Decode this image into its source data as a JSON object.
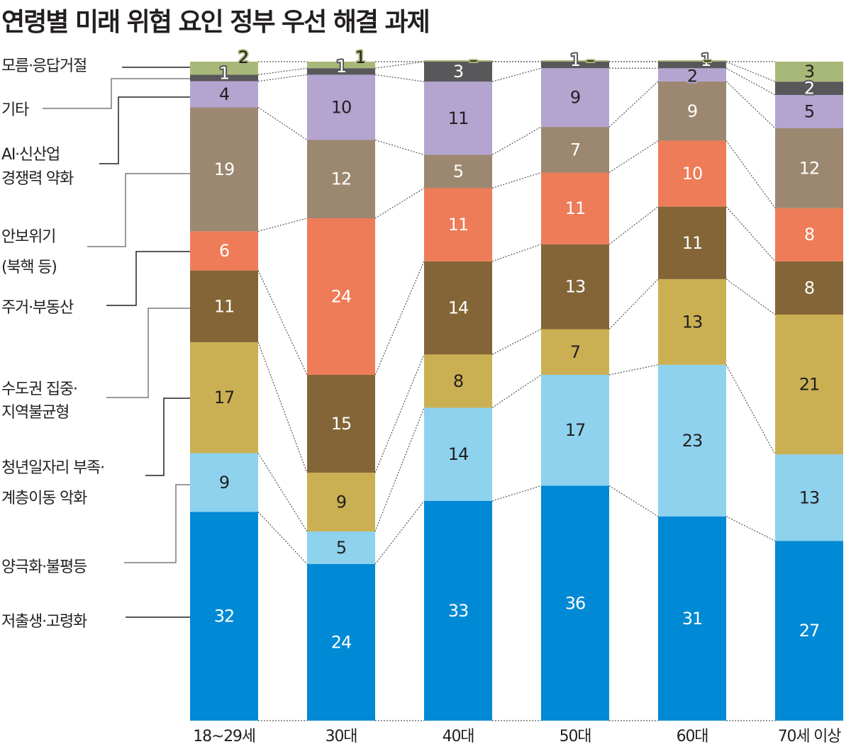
{
  "title": "연령별 미래 위협 요인 정부 우선 해결 과제",
  "chart_data": {
    "type": "bar",
    "stacked": true,
    "normalized": true,
    "title": "연령별 미래 위협 요인 정부 우선 해결 과제",
    "xlabel": "",
    "ylabel": "",
    "categories": [
      "18~29세",
      "30대",
      "40대",
      "50대",
      "60대",
      "70세 이상"
    ],
    "series": [
      {
        "name": "저출생·고령화",
        "color": "#0089d4",
        "text_color": "#ffffff",
        "values": [
          32,
          24,
          33,
          36,
          31,
          27
        ],
        "labels": [
          "32",
          "24",
          "33",
          "36",
          "31",
          "27"
        ]
      },
      {
        "name": "양극화·불평등",
        "color": "#8ed2ee",
        "text_color": "#231f20",
        "values": [
          9,
          5,
          14,
          17,
          23,
          13
        ],
        "labels": [
          "9",
          "5",
          "14",
          "17",
          "23",
          "13"
        ]
      },
      {
        "name": "청년일자리 부족·계층이동 악화",
        "color": "#cab052",
        "text_color": "#231f20",
        "values": [
          17,
          9,
          8,
          7,
          13,
          21
        ],
        "labels": [
          "17",
          "9",
          "8",
          "7",
          "13",
          "21"
        ]
      },
      {
        "name": "수도권 집중·지역불균형",
        "color": "#836537",
        "text_color": "#ffffff",
        "values": [
          11,
          15,
          14,
          13,
          11,
          8
        ],
        "labels": [
          "11",
          "15",
          "14",
          "13",
          "11",
          "8"
        ]
      },
      {
        "name": "주거·부동산",
        "color": "#ee7c58",
        "text_color": "#ffffff",
        "values": [
          6,
          24,
          11,
          11,
          10,
          8
        ],
        "labels": [
          "6",
          "24",
          "11",
          "11",
          "10",
          "8"
        ]
      },
      {
        "name": "안보위기 (북핵 등)",
        "color": "#9c8870",
        "text_color": "#ffffff",
        "values": [
          19,
          12,
          5,
          7,
          9,
          12
        ],
        "labels": [
          "19",
          "12",
          "5",
          "7",
          "9",
          "12"
        ]
      },
      {
        "name": "AI·신산업 경쟁력 약화",
        "color": "#b3a4d0",
        "text_color": "#231f20",
        "values": [
          4,
          10,
          11,
          9,
          2,
          5
        ],
        "labels": [
          "4",
          "10",
          "11",
          "9",
          "2",
          "5"
        ]
      },
      {
        "name": "기타",
        "color": "#58585a",
        "text_color": "#ffffff",
        "values": [
          1,
          1,
          3,
          1,
          1,
          2
        ],
        "labels": [
          "1",
          "1",
          "3",
          "1",
          "1",
          "2"
        ]
      },
      {
        "name": "모름·응답거절",
        "color": "#a8b878",
        "text_color": "#231f20",
        "values": [
          2,
          1,
          0,
          0,
          0,
          3
        ],
        "labels": [
          "2",
          "1",
          "–",
          "–",
          "–",
          "3"
        ]
      }
    ],
    "legend_labels": [
      {
        "lines": [
          "모름·응답거절"
        ]
      },
      {
        "lines": [
          "기타"
        ]
      },
      {
        "lines": [
          "AI·신산업",
          "경쟁력 약화"
        ]
      },
      {
        "lines": [
          "안보위기",
          "(북핵 등)"
        ]
      },
      {
        "lines": [
          "주거·부동산"
        ]
      },
      {
        "lines": [
          "수도권 집중·",
          "지역불균형"
        ]
      },
      {
        "lines": [
          "청년일자리 부족·",
          "계층이동 악화"
        ]
      },
      {
        "lines": [
          "양극화·불평등"
        ]
      },
      {
        "lines": [
          "저출생·고령화"
        ]
      }
    ],
    "legend_placement": "left",
    "grid": false,
    "connectors": "dotted lines between adjacent bar segment boundaries"
  }
}
